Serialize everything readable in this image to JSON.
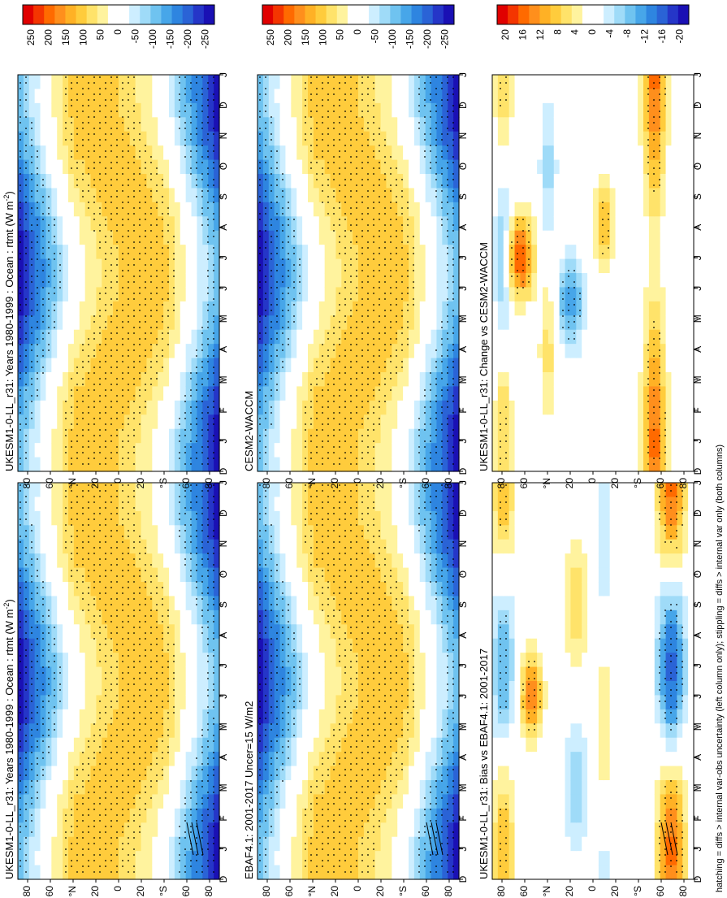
{
  "figure": {
    "caption": "hatching = diffs > internal var-obs uncertainty (left column only); stippling = diffs > internal var only (both columns)"
  },
  "chart_data": [
    {
      "id": "A",
      "type": "heatmap",
      "title": "UKESM1-0-LL_r31: Years 1980-1999 : Ocean : rtmt (W m",
      "title_sup": "-2",
      "title_end": ")",
      "months": [
        "D",
        "J",
        "F",
        "M",
        "A",
        "M",
        "J",
        "J",
        "A",
        "S",
        "O",
        "N",
        "D",
        "J"
      ],
      "lat_ticks": [
        "80",
        "60",
        "°N",
        "20",
        "0",
        "20",
        "°S",
        "60",
        "80"
      ],
      "colorbar": [
        "250",
        "200",
        "150",
        "100",
        "50",
        "0",
        "-50",
        "-100",
        "-150",
        "-200",
        "-250"
      ],
      "scale": 260,
      "kind": "clim",
      "hatch": true,
      "stipple": true
    },
    {
      "id": "B",
      "type": "heatmap",
      "title": "EBAF4.1: 2001-2017 Uncer=15 W/m2",
      "months": [
        "D",
        "J",
        "F",
        "M",
        "A",
        "M",
        "J",
        "J",
        "A",
        "S",
        "O",
        "N",
        "D",
        "J"
      ],
      "lat_ticks": [
        "80",
        "60",
        "°N",
        "20",
        "0",
        "20",
        "°S",
        "60",
        "80"
      ],
      "colorbar": [
        "250",
        "200",
        "150",
        "100",
        "50",
        "0",
        "-50",
        "-100",
        "-150",
        "-200",
        "-250"
      ],
      "scale": 260,
      "kind": "clim",
      "hatch": true,
      "stipple": true
    },
    {
      "id": "C",
      "type": "heatmap",
      "title": "UKESM1-0-LL_r31: Bias vs EBAF4.1: 2001-2017",
      "months": [
        "D",
        "J",
        "F",
        "M",
        "A",
        "M",
        "J",
        "J",
        "A",
        "S",
        "O",
        "N",
        "D",
        "J"
      ],
      "lat_ticks": [
        "80",
        "60",
        "°N",
        "20",
        "0",
        "20",
        "°S",
        "60",
        "80"
      ],
      "colorbar": [
        "20",
        "16",
        "12",
        "8",
        "4",
        "0",
        "-4",
        "-8",
        "-12",
        "-16",
        "-20"
      ],
      "scale": 22,
      "kind": "bias",
      "hatch": true,
      "stipple": true
    },
    {
      "id": "D",
      "type": "heatmap",
      "title": "UKESM1-0-LL_r31: Years 1980-1999 : Ocean : rtmt (W m",
      "title_sup": "-2",
      "title_end": ")",
      "months": [
        "D",
        "J",
        "F",
        "M",
        "A",
        "M",
        "J",
        "J",
        "A",
        "S",
        "O",
        "N",
        "D",
        "J"
      ],
      "lat_ticks": [
        "80",
        "60",
        "°N",
        "20",
        "0",
        "20",
        "°S",
        "60",
        "80"
      ],
      "colorbar": [
        "250",
        "200",
        "150",
        "100",
        "50",
        "0",
        "-50",
        "-100",
        "-150",
        "-200",
        "-250"
      ],
      "scale": 260,
      "kind": "clim",
      "hatch": false,
      "stipple": true
    },
    {
      "id": "E",
      "type": "heatmap",
      "title": "CESM2-WACCM",
      "months": [
        "D",
        "J",
        "F",
        "M",
        "A",
        "M",
        "J",
        "J",
        "A",
        "S",
        "O",
        "N",
        "D",
        "J"
      ],
      "lat_ticks": [
        "80",
        "60",
        "°N",
        "20",
        "0",
        "20",
        "°S",
        "60",
        "80"
      ],
      "colorbar": [
        "250",
        "200",
        "150",
        "100",
        "50",
        "0",
        "-50",
        "-100",
        "-150",
        "-200",
        "-250"
      ],
      "scale": 260,
      "kind": "clim",
      "hatch": false,
      "stipple": true
    },
    {
      "id": "F",
      "type": "heatmap",
      "title": "UKESM1-0-LL_r31: Change vs CESM2-WACCM",
      "months": [
        "D",
        "J",
        "F",
        "M",
        "A",
        "M",
        "J",
        "J",
        "A",
        "S",
        "O",
        "N",
        "D",
        "J"
      ],
      "lat_ticks": [
        "80",
        "60",
        "°N",
        "20",
        "0",
        "20",
        "°S",
        "60",
        "80"
      ],
      "colorbar": [
        "20",
        "16",
        "12",
        "8",
        "4",
        "0",
        "-4",
        "-8",
        "-12",
        "-16",
        "-20"
      ],
      "scale": 22,
      "kind": "change",
      "hatch": false,
      "stipple": true
    }
  ]
}
